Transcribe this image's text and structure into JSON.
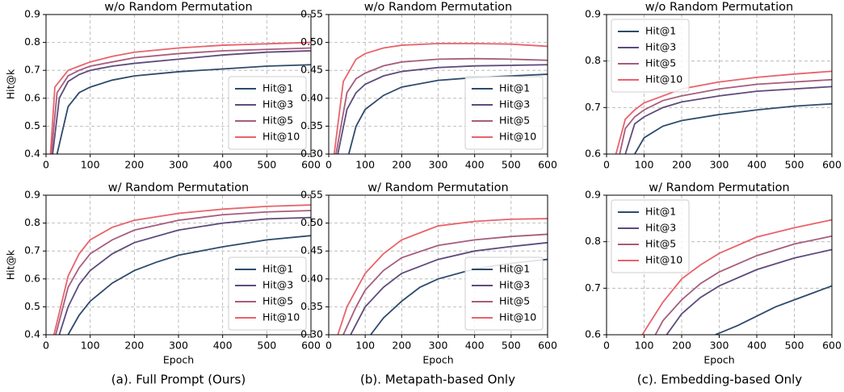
{
  "chart_data": [
    {
      "type": "line",
      "title": "w/o Random Permutation",
      "y_label": "Hit@k",
      "xlim": [
        0,
        600
      ],
      "xticks": [
        0,
        100,
        200,
        300,
        400,
        500,
        600
      ],
      "ylim": [
        0.4,
        0.9
      ],
      "yticks": [
        0.4,
        0.5,
        0.6,
        0.7,
        0.8,
        0.9
      ],
      "grid": true,
      "legend": "lower right",
      "series": [
        {
          "name": "Hit@1",
          "color": "#2e4a6b",
          "x": [
            25,
            50,
            75,
            100,
            150,
            200,
            300,
            400,
            500,
            600
          ],
          "values": [
            0.4,
            0.57,
            0.62,
            0.64,
            0.665,
            0.68,
            0.695,
            0.705,
            0.715,
            0.72
          ]
        },
        {
          "name": "Hit@3",
          "color": "#5e4a7c",
          "x": [
            15,
            30,
            50,
            75,
            100,
            150,
            200,
            300,
            400,
            500,
            600
          ],
          "values": [
            0.4,
            0.6,
            0.66,
            0.685,
            0.7,
            0.715,
            0.725,
            0.74,
            0.755,
            0.765,
            0.77
          ]
        },
        {
          "name": "Hit@5",
          "color": "#a65c7c",
          "x": [
            12,
            25,
            50,
            75,
            100,
            150,
            200,
            300,
            400,
            500,
            600
          ],
          "values": [
            0.4,
            0.62,
            0.68,
            0.7,
            0.715,
            0.73,
            0.745,
            0.76,
            0.77,
            0.775,
            0.78
          ]
        },
        {
          "name": "Hit@10",
          "color": "#e8636b",
          "x": [
            10,
            20,
            50,
            75,
            100,
            150,
            200,
            300,
            400,
            500,
            600
          ],
          "values": [
            0.4,
            0.64,
            0.7,
            0.715,
            0.73,
            0.75,
            0.765,
            0.78,
            0.79,
            0.795,
            0.8
          ]
        }
      ]
    },
    {
      "type": "line",
      "title": "w/o Random Permutation",
      "xlim": [
        0,
        600
      ],
      "xticks": [
        0,
        100,
        200,
        300,
        400,
        500,
        600
      ],
      "ylim": [
        0.3,
        0.55
      ],
      "yticks": [
        {
          "value": 0.3,
          "label": "0.30"
        },
        0.35,
        {
          "value": 0.4,
          "label": "0.40"
        },
        0.45,
        {
          "value": 0.5,
          "label": "0.50"
        },
        0.55
      ],
      "grid": true,
      "legend": "lower right",
      "series": [
        {
          "name": "Hit@1",
          "color": "#2e4a6b",
          "x": [
            55,
            75,
            100,
            150,
            200,
            300,
            400,
            500,
            600
          ],
          "values": [
            0.3,
            0.35,
            0.38,
            0.405,
            0.42,
            0.432,
            0.437,
            0.44,
            0.443
          ]
        },
        {
          "name": "Hit@3",
          "color": "#5e4a7c",
          "x": [
            25,
            50,
            75,
            100,
            150,
            200,
            300,
            400,
            500,
            600
          ],
          "values": [
            0.3,
            0.38,
            0.41,
            0.425,
            0.44,
            0.448,
            0.455,
            0.458,
            0.459,
            0.46
          ]
        },
        {
          "name": "Hit@5",
          "color": "#a65c7c",
          "x": [
            20,
            50,
            75,
            100,
            150,
            200,
            300,
            400,
            500,
            600
          ],
          "values": [
            0.3,
            0.41,
            0.435,
            0.445,
            0.458,
            0.465,
            0.47,
            0.471,
            0.47,
            0.468
          ]
        },
        {
          "name": "Hit@10",
          "color": "#e8636b",
          "x": [
            15,
            40,
            75,
            100,
            150,
            200,
            300,
            400,
            500,
            600
          ],
          "values": [
            0.3,
            0.43,
            0.47,
            0.48,
            0.49,
            0.495,
            0.498,
            0.498,
            0.497,
            0.493
          ]
        }
      ]
    },
    {
      "type": "line",
      "title": "w/o Random Permutation",
      "xlim": [
        0,
        600
      ],
      "xticks": [
        0,
        100,
        200,
        300,
        400,
        500,
        600
      ],
      "ylim": [
        0.6,
        0.9
      ],
      "yticks": [
        0.6,
        0.7,
        0.8,
        0.9
      ],
      "grid": true,
      "legend": "upper left",
      "series": [
        {
          "name": "Hit@1",
          "color": "#2e4a6b",
          "x": [
            75,
            100,
            150,
            200,
            300,
            400,
            500,
            600
          ],
          "values": [
            0.6,
            0.635,
            0.66,
            0.672,
            0.685,
            0.695,
            0.703,
            0.708
          ]
        },
        {
          "name": "Hit@3",
          "color": "#5e4a7c",
          "x": [
            50,
            75,
            100,
            150,
            200,
            300,
            400,
            500,
            600
          ],
          "values": [
            0.6,
            0.665,
            0.68,
            0.7,
            0.712,
            0.725,
            0.735,
            0.74,
            0.745
          ]
        },
        {
          "name": "Hit@5",
          "color": "#a65c7c",
          "x": [
            35,
            50,
            75,
            100,
            150,
            200,
            300,
            400,
            500,
            600
          ],
          "values": [
            0.6,
            0.655,
            0.68,
            0.695,
            0.715,
            0.725,
            0.74,
            0.75,
            0.755,
            0.76
          ]
        },
        {
          "name": "Hit@10",
          "color": "#e8636b",
          "x": [
            25,
            50,
            75,
            100,
            150,
            200,
            300,
            400,
            500,
            600
          ],
          "values": [
            0.6,
            0.675,
            0.695,
            0.71,
            0.725,
            0.74,
            0.755,
            0.765,
            0.772,
            0.778
          ]
        }
      ]
    },
    {
      "type": "line",
      "title": "w/ Random Permutation",
      "x_label": "Epoch",
      "y_label": "Hit@k",
      "xlim": [
        0,
        600
      ],
      "xticks": [
        0,
        100,
        200,
        300,
        400,
        500,
        600
      ],
      "ylim": [
        0.4,
        0.9
      ],
      "yticks": [
        0.4,
        0.5,
        0.6,
        0.7,
        0.8,
        0.9
      ],
      "grid": true,
      "legend": "lower right",
      "series": [
        {
          "name": "Hit@1",
          "color": "#2e4a6b",
          "x": [
            50,
            75,
            100,
            150,
            200,
            250,
            300,
            400,
            500,
            600
          ],
          "values": [
            0.4,
            0.47,
            0.52,
            0.585,
            0.63,
            0.66,
            0.685,
            0.715,
            0.74,
            0.755
          ]
        },
        {
          "name": "Hit@3",
          "color": "#5e4a7c",
          "x": [
            30,
            50,
            75,
            100,
            150,
            200,
            300,
            400,
            500,
            600
          ],
          "values": [
            0.4,
            0.5,
            0.58,
            0.63,
            0.69,
            0.73,
            0.775,
            0.8,
            0.815,
            0.82
          ]
        },
        {
          "name": "Hit@5",
          "color": "#a65c7c",
          "x": [
            22,
            50,
            75,
            100,
            150,
            200,
            300,
            400,
            500,
            600
          ],
          "values": [
            0.4,
            0.57,
            0.64,
            0.69,
            0.74,
            0.775,
            0.81,
            0.83,
            0.84,
            0.845
          ]
        },
        {
          "name": "Hit@10",
          "color": "#e8636b",
          "x": [
            18,
            50,
            75,
            100,
            150,
            200,
            300,
            400,
            500,
            600
          ],
          "values": [
            0.4,
            0.61,
            0.69,
            0.74,
            0.785,
            0.81,
            0.835,
            0.85,
            0.86,
            0.865
          ]
        }
      ]
    },
    {
      "type": "line",
      "title": "w/ Random Permutation",
      "x_label": "Epoch",
      "xlim": [
        0,
        600
      ],
      "xticks": [
        0,
        100,
        200,
        300,
        400,
        500,
        600
      ],
      "ylim": [
        0.3,
        0.55
      ],
      "yticks": [
        {
          "value": 0.3,
          "label": "0.30"
        },
        0.35,
        {
          "value": 0.4,
          "label": "0.40"
        },
        0.45,
        {
          "value": 0.5,
          "label": "0.50"
        },
        0.55
      ],
      "grid": true,
      "legend": "lower right",
      "series": [
        {
          "name": "Hit@1",
          "color": "#2e4a6b",
          "x": [
            115,
            150,
            200,
            250,
            300,
            400,
            500,
            600
          ],
          "values": [
            0.3,
            0.33,
            0.36,
            0.385,
            0.4,
            0.418,
            0.428,
            0.435
          ]
        },
        {
          "name": "Hit@3",
          "color": "#5e4a7c",
          "x": [
            60,
            100,
            150,
            200,
            300,
            400,
            500,
            600
          ],
          "values": [
            0.3,
            0.35,
            0.385,
            0.41,
            0.435,
            0.45,
            0.458,
            0.465
          ]
        },
        {
          "name": "Hit@5",
          "color": "#a65c7c",
          "x": [
            40,
            75,
            100,
            150,
            200,
            300,
            400,
            500,
            600
          ],
          "values": [
            0.3,
            0.35,
            0.38,
            0.415,
            0.438,
            0.46,
            0.47,
            0.476,
            0.48
          ]
        },
        {
          "name": "Hit@10",
          "color": "#e8636b",
          "x": [
            25,
            50,
            100,
            150,
            200,
            300,
            400,
            500,
            600
          ],
          "values": [
            0.3,
            0.35,
            0.41,
            0.445,
            0.47,
            0.495,
            0.503,
            0.507,
            0.508
          ]
        }
      ]
    },
    {
      "type": "line",
      "title": "w/ Random Permutation",
      "x_label": "Epoch",
      "xlim": [
        0,
        600
      ],
      "xticks": [
        0,
        100,
        200,
        300,
        400,
        500,
        600
      ],
      "ylim": [
        0.6,
        0.9
      ],
      "yticks": [
        0.6,
        0.7,
        0.8,
        0.9
      ],
      "grid": true,
      "legend": "upper left",
      "series": [
        {
          "name": "Hit@1",
          "color": "#2e4a6b",
          "x": [
            290,
            350,
            400,
            450,
            500,
            550,
            600
          ],
          "values": [
            0.6,
            0.62,
            0.64,
            0.66,
            0.675,
            0.69,
            0.705
          ]
        },
        {
          "name": "Hit@3",
          "color": "#5e4a7c",
          "x": [
            160,
            200,
            250,
            300,
            400,
            500,
            600
          ],
          "values": [
            0.6,
            0.645,
            0.68,
            0.705,
            0.74,
            0.765,
            0.783
          ]
        },
        {
          "name": "Hit@5",
          "color": "#a65c7c",
          "x": [
            130,
            150,
            200,
            250,
            300,
            400,
            500,
            600
          ],
          "values": [
            0.6,
            0.63,
            0.675,
            0.71,
            0.735,
            0.77,
            0.795,
            0.812
          ]
        },
        {
          "name": "Hit@10",
          "color": "#e8636b",
          "x": [
            95,
            150,
            200,
            250,
            300,
            400,
            500,
            600
          ],
          "values": [
            0.6,
            0.67,
            0.72,
            0.75,
            0.775,
            0.81,
            0.83,
            0.847
          ]
        }
      ]
    }
  ],
  "captions": [
    "(a). Full Prompt (Ours)",
    "(b). Metapath-based Only",
    "(c). Embedding-based Only"
  ]
}
